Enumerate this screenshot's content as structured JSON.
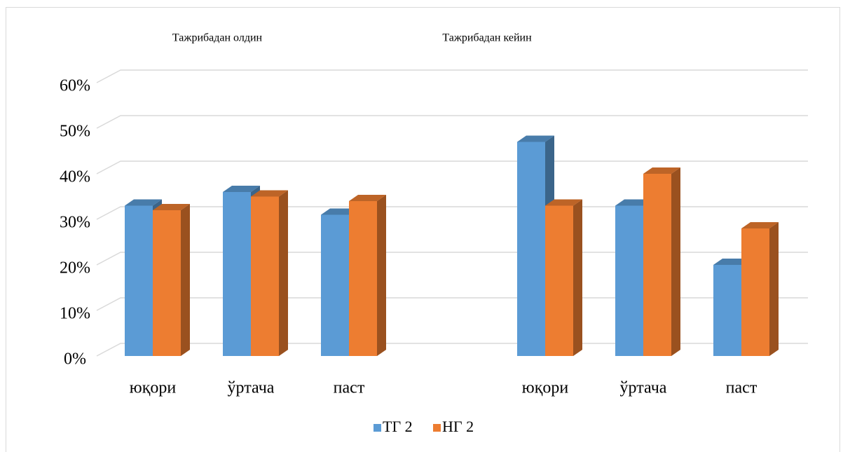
{
  "chart_data": {
    "type": "bar3d",
    "annotations": [
      "Тажрибадан олдин",
      "Тажрибадан кейин"
    ],
    "categories": [
      "юқори",
      "ўртача",
      "паст",
      null,
      "юқори",
      "ўртача",
      "паст"
    ],
    "series": [
      {
        "name": "ТГ 2",
        "color": "#5b9bd5",
        "values": [
          33,
          36,
          31,
          null,
          47,
          33,
          20
        ]
      },
      {
        "name": "НГ 2",
        "color": "#ed7d31",
        "values": [
          32,
          35,
          34,
          null,
          33,
          40,
          28
        ]
      }
    ],
    "ylim": [
      0,
      60
    ],
    "yticks": [
      {
        "value": 0,
        "label": "0%"
      },
      {
        "value": 10,
        "label": "10%"
      },
      {
        "value": 20,
        "label": "20%"
      },
      {
        "value": 30,
        "label": "30%"
      },
      {
        "value": 40,
        "label": "40%"
      },
      {
        "value": 50,
        "label": "50%"
      },
      {
        "value": 60,
        "label": "60%"
      }
    ],
    "grid": true,
    "legend": "bottom"
  }
}
